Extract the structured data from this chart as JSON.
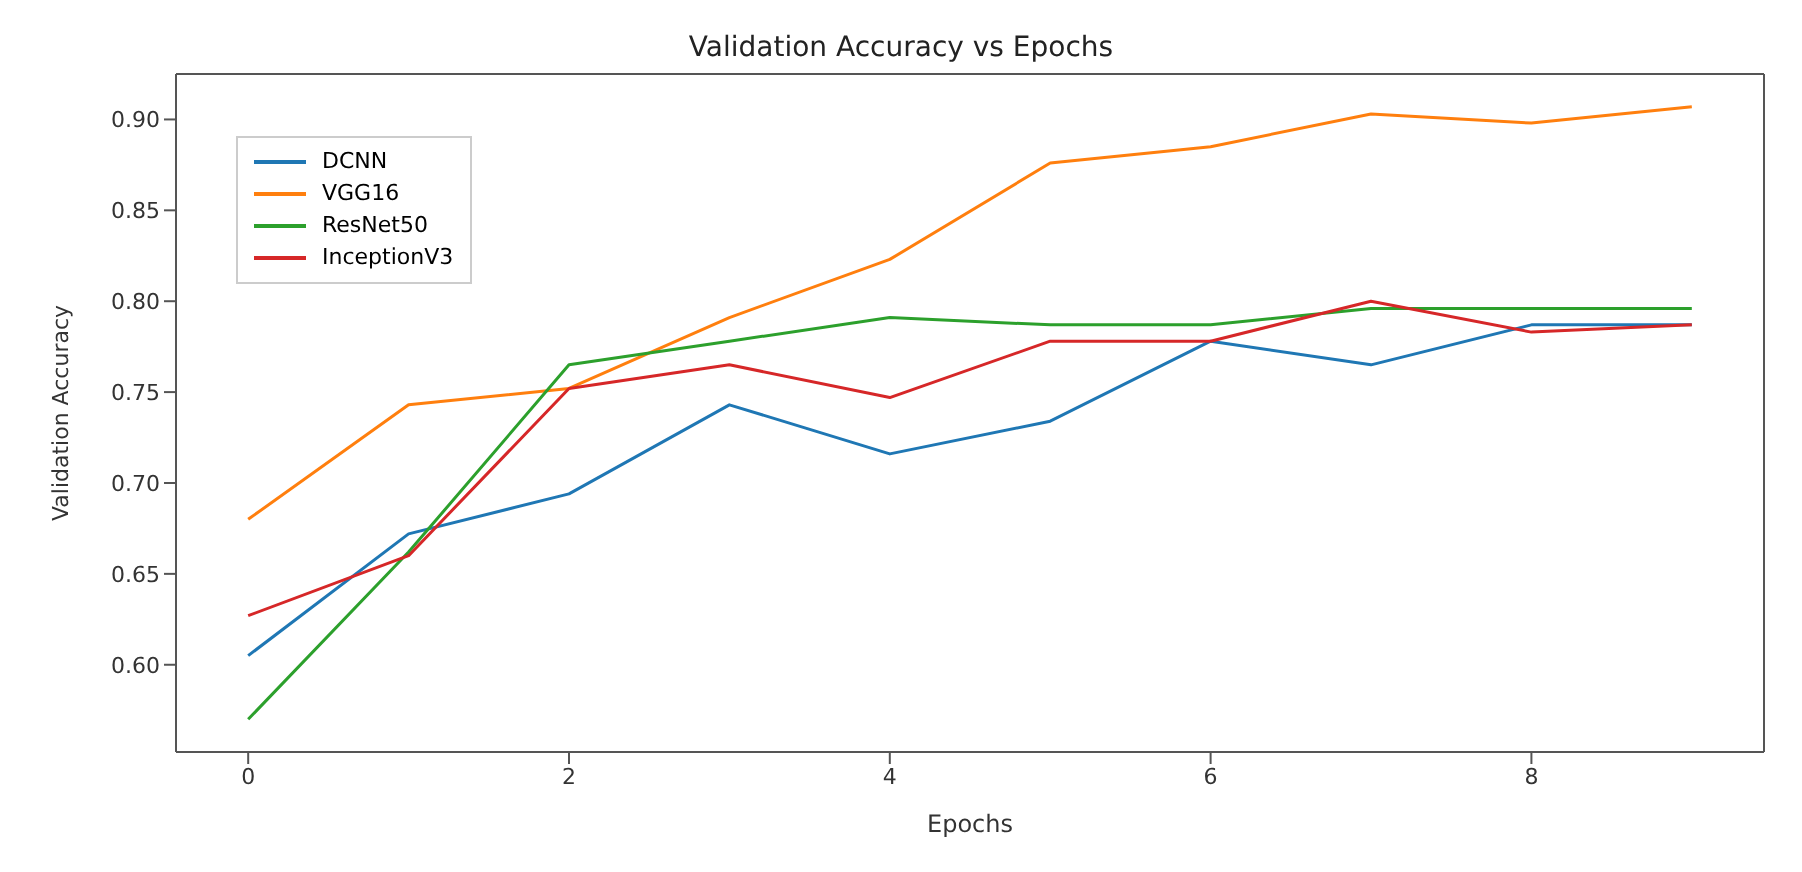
{
  "chart_data": {
    "type": "line",
    "title": "Validation Accuracy vs Epochs",
    "xlabel": "Epochs",
    "ylabel": "Validation Accuracy",
    "x": [
      0,
      1,
      2,
      3,
      4,
      5,
      6,
      7,
      8,
      9
    ],
    "series": [
      {
        "name": "DCNN",
        "color": "#1f77b4",
        "values": [
          0.605,
          0.672,
          0.694,
          0.743,
          0.716,
          0.734,
          0.778,
          0.765,
          0.787,
          0.787
        ]
      },
      {
        "name": "VGG16",
        "color": "#ff7f0e",
        "values": [
          0.68,
          0.743,
          0.752,
          0.791,
          0.823,
          0.876,
          0.885,
          0.903,
          0.898,
          0.907
        ]
      },
      {
        "name": "ResNet50",
        "color": "#2ca02c",
        "values": [
          0.57,
          0.662,
          0.765,
          0.778,
          0.791,
          0.787,
          0.787,
          0.796,
          0.796,
          0.796
        ]
      },
      {
        "name": "InceptionV3",
        "color": "#d62728",
        "values": [
          0.627,
          0.66,
          0.752,
          0.765,
          0.747,
          0.778,
          0.778,
          0.8,
          0.783,
          0.787
        ]
      }
    ],
    "xlim": [
      -0.45,
      9.45
    ],
    "xticks": [
      0,
      2,
      4,
      6,
      8
    ],
    "ylim": [
      0.552,
      0.925
    ],
    "yticks": [
      {
        "value": 0.6,
        "label": "0.60"
      },
      0.65,
      {
        "value": 0.7,
        "label": "0.70"
      },
      0.75,
      {
        "value": 0.8,
        "label": "0.80"
      },
      0.85,
      {
        "value": 0.9,
        "label": "0.90"
      }
    ],
    "grid": false,
    "legend": "top left",
    "marker": "none",
    "line_style": "solid"
  }
}
